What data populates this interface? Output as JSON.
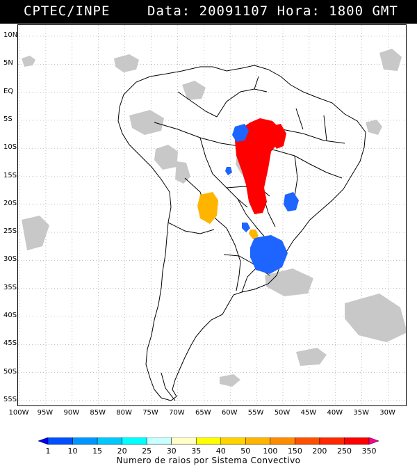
{
  "header": {
    "source": "CPTEC/INPE",
    "date_label": "Data:",
    "date": "20091107",
    "hour_label": "Hora:",
    "hour": "1800 GMT"
  },
  "map": {
    "lat_labels": [
      "10N",
      "5N",
      "EQ",
      "5S",
      "10S",
      "15S",
      "20S",
      "25S",
      "30S",
      "35S",
      "40S",
      "45S",
      "50S",
      "55S"
    ],
    "lon_labels": [
      "100W",
      "95W",
      "90W",
      "85W",
      "80W",
      "75W",
      "70W",
      "65W",
      "60W",
      "55W",
      "50W",
      "45W",
      "40W",
      "35W",
      "30W"
    ],
    "grid": "dotted",
    "colors": {
      "land_outline": "#000000",
      "cloud_gray": "#c8c8c8",
      "blue": "#1e64ff",
      "red": "#ff0000",
      "orange": "#ffb400"
    }
  },
  "legend": {
    "values": [
      "1",
      "10",
      "15",
      "20",
      "25",
      "30",
      "35",
      "40",
      "50",
      "100",
      "150",
      "200",
      "250",
      "350"
    ],
    "colors": [
      "#0000ff",
      "#0050ff",
      "#0096ff",
      "#00c8ff",
      "#00ffff",
      "#c8ffff",
      "#ffffc8",
      "#ffff00",
      "#ffd200",
      "#ffb400",
      "#ff8c00",
      "#ff5000",
      "#ff2800",
      "#ff0000",
      "#ff0096"
    ],
    "caption": "Numero de raios por Sistema Convectivo"
  }
}
